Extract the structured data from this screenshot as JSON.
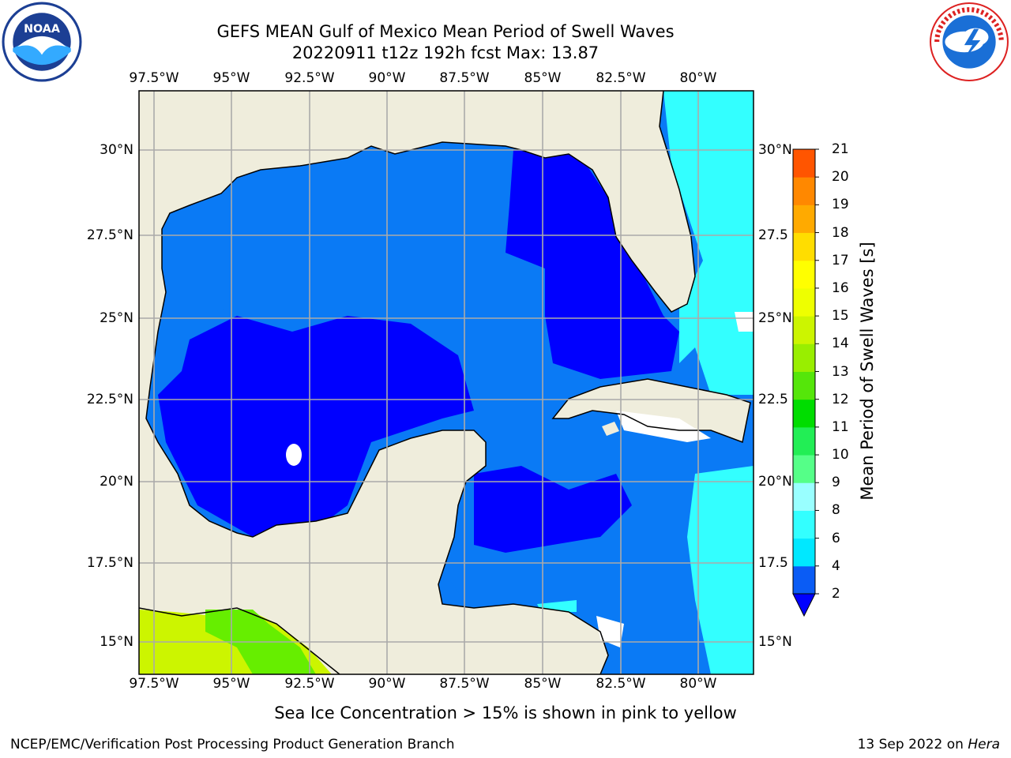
{
  "header": {
    "title_line1": "GEFS MEAN Gulf of Mexico Mean Period of Swell Waves",
    "title_line2": "20220911 t12z 192h fcst   Max: 13.87"
  },
  "logos": {
    "left": "NOAA",
    "right": "NATIONAL WEATHER SERVICE"
  },
  "map": {
    "lon_ticks": [
      "97.5°W",
      "95°W",
      "92.5°W",
      "90°W",
      "87.5°W",
      "85°W",
      "82.5°W",
      "80°W"
    ],
    "lat_ticks_left": [
      "30°N",
      "27.5°N",
      "25°N",
      "22.5°N",
      "20°N",
      "17.5°N",
      "15°N"
    ],
    "lat_ticks_right": [
      "30°N",
      "27.5",
      "25°N",
      "22.5",
      "20°N",
      "17.5",
      "15°N"
    ]
  },
  "colorbar": {
    "label": "Mean Period of Swell Waves [s]",
    "levels": [
      "2",
      "4",
      "6",
      "8",
      "9",
      "10",
      "11",
      "12",
      "13",
      "14",
      "15",
      "16",
      "17",
      "18",
      "19",
      "20",
      "21"
    ],
    "colors": [
      "#0a5cf5",
      "#00e8ff",
      "#33ffff",
      "#99ffff",
      "#55ff88",
      "#22ee55",
      "#00dd00",
      "#55e60a",
      "#99ee00",
      "#ccf500",
      "#eeff00",
      "#ffff00",
      "#ffdd00",
      "#ffaa00",
      "#ff8800",
      "#ff5500",
      "#ff2200",
      "#ff0000"
    ],
    "under_color": "#0000ff"
  },
  "field_colors": {
    "land": "#efeddc",
    "deep_blue": "#0000ff",
    "mid_blue": "#0a7af5",
    "cyan": "#33ffff",
    "green": "#66ee00",
    "yellow_green": "#ccf500"
  },
  "footer": {
    "note": "Sea Ice Concentration > 15% is shown in pink to yellow",
    "credit": "NCEP/EMC/Verification Post Processing Product Generation Branch",
    "date": "13 Sep 2022 on",
    "machine": "Hera"
  }
}
